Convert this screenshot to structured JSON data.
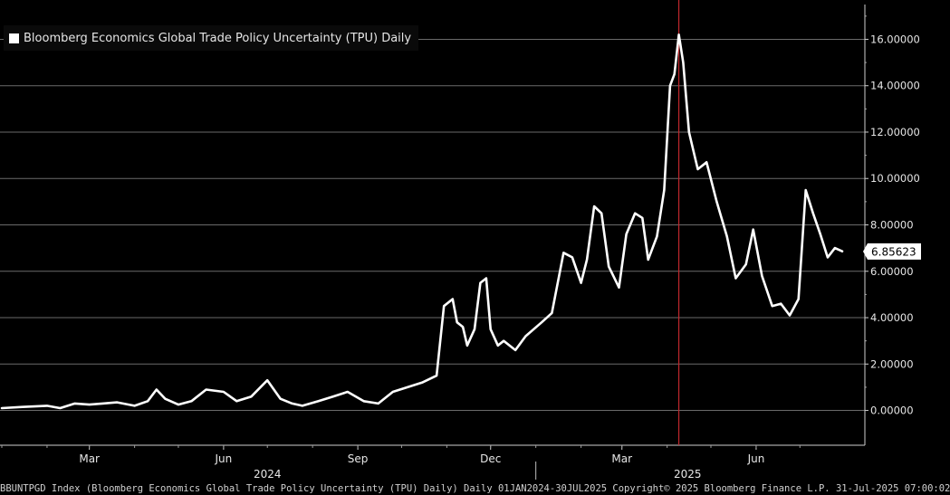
{
  "colors": {
    "background": "#000000",
    "line": "#ffffff",
    "grid": "#6a6a6a",
    "marker": "#c0282d",
    "text": "#e6e6e6"
  },
  "chart_data": {
    "type": "line",
    "title": "",
    "xlabel": "",
    "ylabel": "",
    "legend": {
      "placement": "top-left",
      "entries": [
        "Bloomberg Economics Global Trade Policy Uncertainty (TPU) Daily"
      ]
    },
    "grid": true,
    "y_axis_side": "right",
    "ylim": [
      -1.5,
      17.5
    ],
    "yticks": [
      {
        "value": 0,
        "label": "0.00000"
      },
      {
        "value": 2,
        "label": "2.00000"
      },
      {
        "value": 4,
        "label": "4.00000"
      },
      {
        "value": 6,
        "label": "6.00000"
      },
      {
        "value": 8,
        "label": "8.00000"
      },
      {
        "value": 10,
        "label": "10.00000"
      },
      {
        "value": 12,
        "label": "12.00000"
      },
      {
        "value": 14,
        "label": "14.00000"
      },
      {
        "value": 16,
        "label": "16.00000"
      }
    ],
    "xlim": [
      "2024-01-01",
      "2025-07-30"
    ],
    "xticks": [
      {
        "date": "2024-03-01",
        "label": "Mar"
      },
      {
        "date": "2024-06-01",
        "label": "Jun"
      },
      {
        "date": "2024-09-01",
        "label": "Sep"
      },
      {
        "date": "2024-12-01",
        "label": "Dec"
      },
      {
        "date": "2025-03-01",
        "label": "Mar"
      },
      {
        "date": "2025-06-01",
        "label": "Jun"
      }
    ],
    "year_labels": [
      {
        "date": "2024-07-01",
        "label": "2024"
      },
      {
        "date": "2025-04-15",
        "label": "2025"
      }
    ],
    "year_separator": "2025-01-01",
    "vertical_marker": "2025-04-09",
    "last_value": {
      "value": 6.85623,
      "label": "6.85623"
    },
    "series": [
      {
        "name": "Bloomberg Economics Global Trade Policy Uncertainty (TPU) Daily",
        "x": [
          "2024-01-01",
          "2024-01-15",
          "2024-02-01",
          "2024-02-10",
          "2024-02-20",
          "2024-03-01",
          "2024-03-10",
          "2024-03-20",
          "2024-04-01",
          "2024-04-10",
          "2024-04-16",
          "2024-04-22",
          "2024-05-01",
          "2024-05-10",
          "2024-05-20",
          "2024-06-01",
          "2024-06-10",
          "2024-06-20",
          "2024-07-01",
          "2024-07-10",
          "2024-07-18",
          "2024-07-25",
          "2024-08-05",
          "2024-08-15",
          "2024-08-25",
          "2024-09-05",
          "2024-09-15",
          "2024-09-25",
          "2024-10-05",
          "2024-10-15",
          "2024-10-25",
          "2024-10-30",
          "2024-11-05",
          "2024-11-08",
          "2024-11-12",
          "2024-11-15",
          "2024-11-20",
          "2024-11-24",
          "2024-11-28",
          "2024-12-01",
          "2024-12-06",
          "2024-12-10",
          "2024-12-18",
          "2024-12-25",
          "2025-01-05",
          "2025-01-12",
          "2025-01-20",
          "2025-01-26",
          "2025-02-01",
          "2025-02-05",
          "2025-02-10",
          "2025-02-15",
          "2025-02-20",
          "2025-02-27",
          "2025-03-04",
          "2025-03-10",
          "2025-03-15",
          "2025-03-19",
          "2025-03-25",
          "2025-03-30",
          "2025-04-03",
          "2025-04-06",
          "2025-04-09",
          "2025-04-12",
          "2025-04-16",
          "2025-04-22",
          "2025-04-28",
          "2025-05-05",
          "2025-05-12",
          "2025-05-18",
          "2025-05-25",
          "2025-05-30",
          "2025-06-05",
          "2025-06-12",
          "2025-06-18",
          "2025-06-24",
          "2025-06-30",
          "2025-07-05",
          "2025-07-10",
          "2025-07-15",
          "2025-07-20",
          "2025-07-25",
          "2025-07-30"
        ],
        "y": [
          0.1,
          0.15,
          0.2,
          0.1,
          0.3,
          0.25,
          0.3,
          0.35,
          0.2,
          0.4,
          0.9,
          0.5,
          0.25,
          0.4,
          0.9,
          0.8,
          0.4,
          0.6,
          1.3,
          0.5,
          0.3,
          0.2,
          0.4,
          0.6,
          0.8,
          0.4,
          0.3,
          0.8,
          1.0,
          1.2,
          1.5,
          4.5,
          4.8,
          3.8,
          3.6,
          2.8,
          3.5,
          5.5,
          5.7,
          3.5,
          2.8,
          3.0,
          2.6,
          3.2,
          3.8,
          4.2,
          6.8,
          6.6,
          5.5,
          6.5,
          8.8,
          8.5,
          6.2,
          5.3,
          7.6,
          8.5,
          8.3,
          6.5,
          7.5,
          9.5,
          14.0,
          14.5,
          16.2,
          15.0,
          12.0,
          10.4,
          10.7,
          9.0,
          7.5,
          5.7,
          6.3,
          7.8,
          5.8,
          4.5,
          4.6,
          4.1,
          4.8,
          9.5,
          8.5,
          7.6,
          6.6,
          7.0,
          6.86
        ]
      }
    ]
  },
  "footer": {
    "text": "BBUNTPGD Index (Bloomberg Economics Global Trade Policy Uncertainty (TPU) Daily)  Daily 01JAN2024-30JUL2025  Copyright© 2025 Bloomberg Finance L.P.  31-Jul-2025 07:00:02"
  }
}
